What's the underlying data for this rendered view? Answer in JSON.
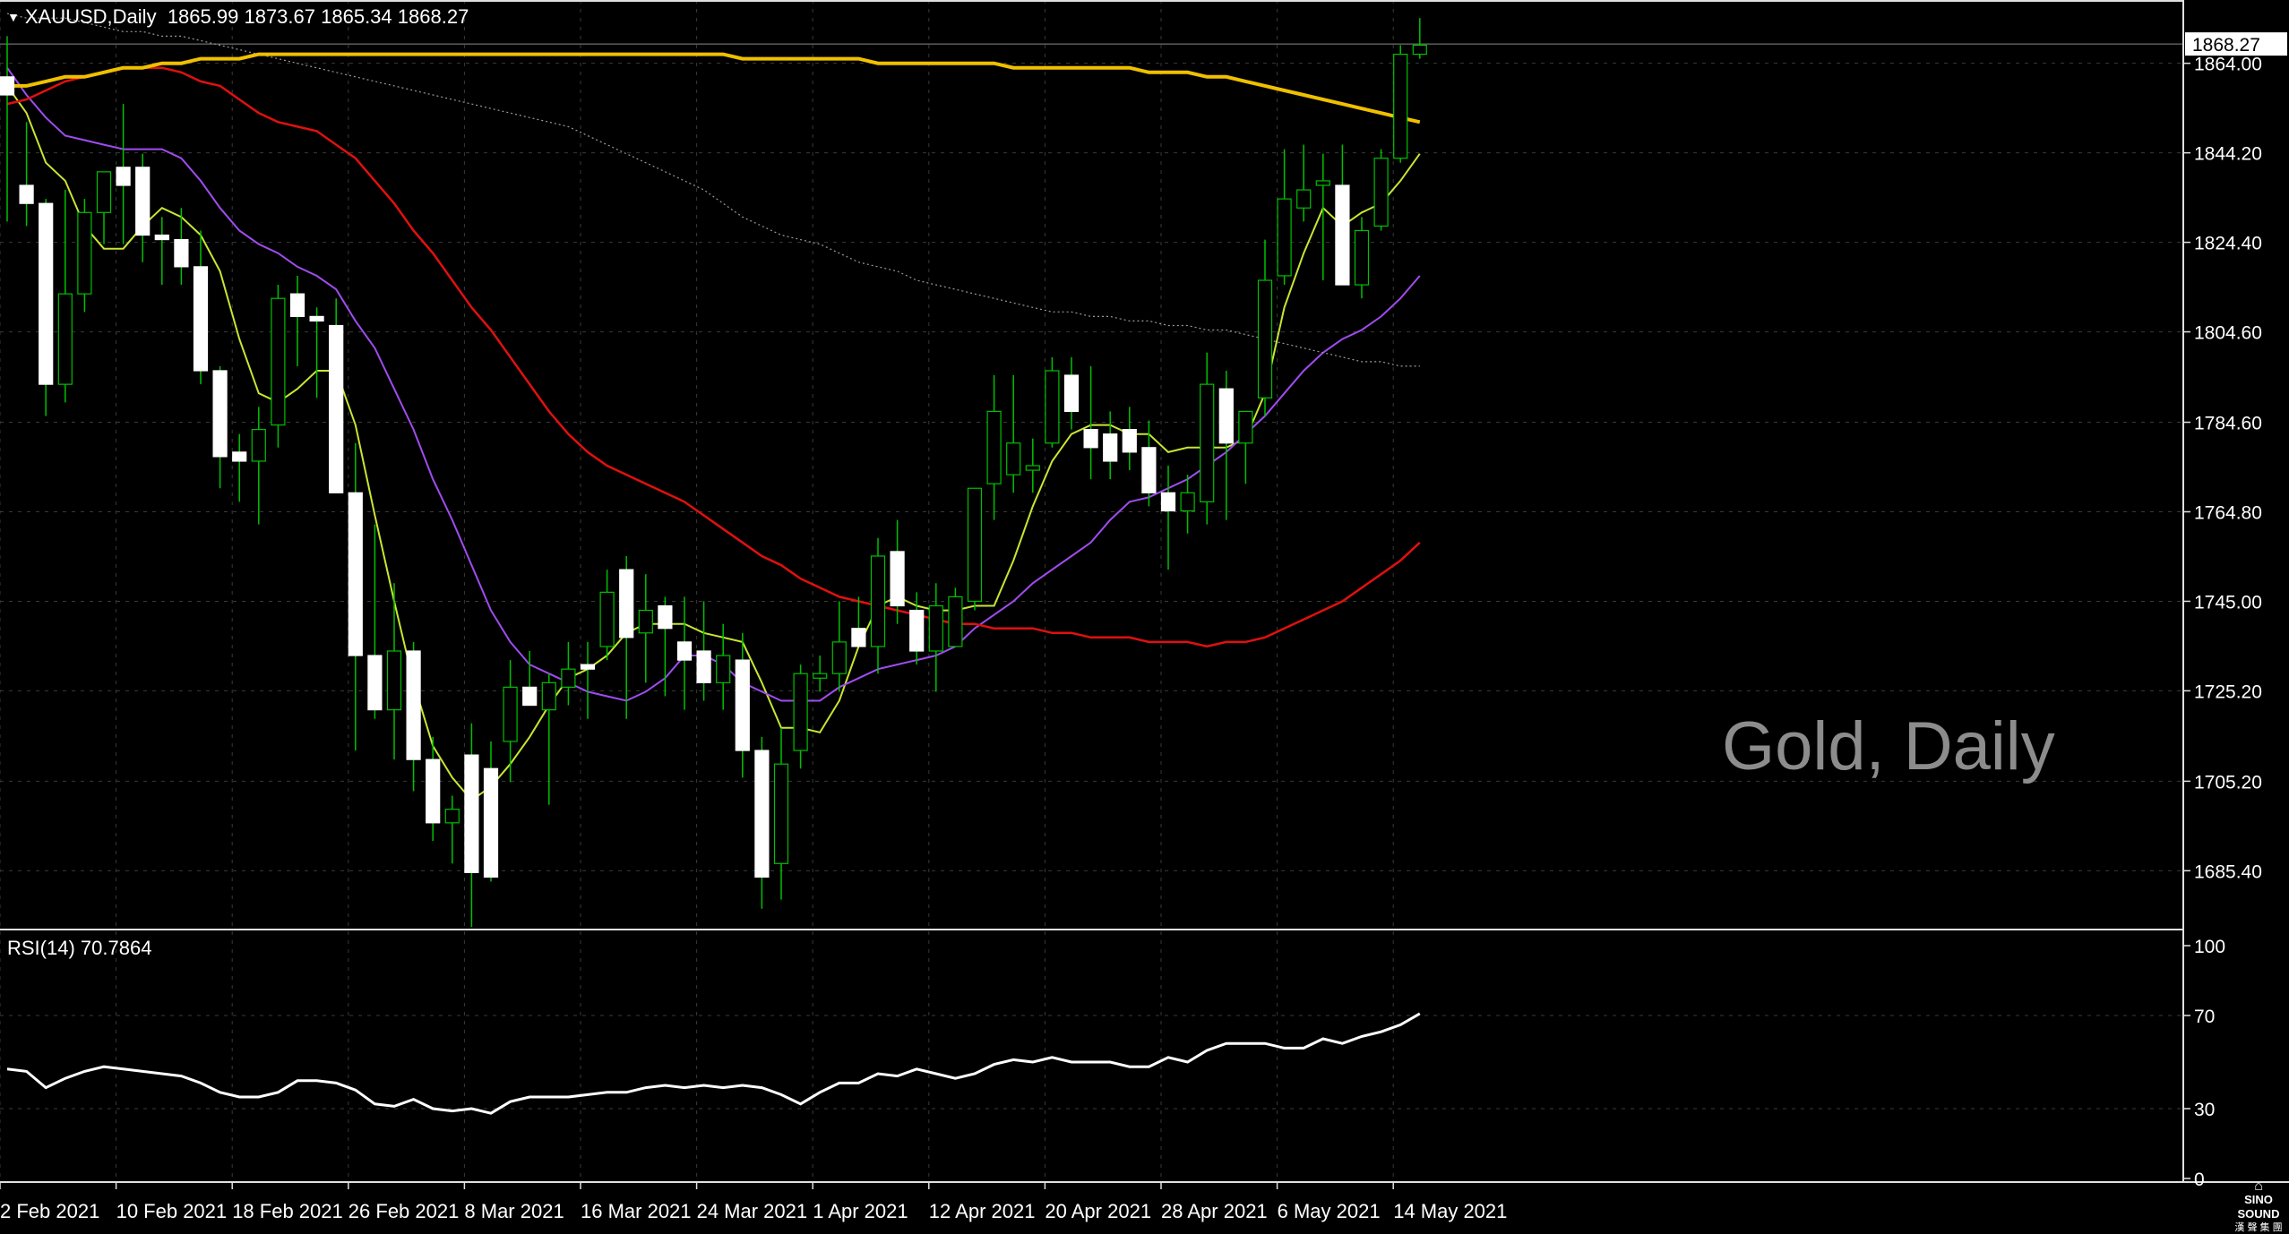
{
  "header": {
    "symbol": "XAUUSD",
    "timeframe": "Daily",
    "open": "1865.99",
    "high": "1873.67",
    "low": "1865.34",
    "close": "1868.27"
  },
  "watermark": "Gold, Daily",
  "brand": {
    "name": "SINO SOUND",
    "subtitle": "漢 聲 集 團"
  },
  "rsi": {
    "label": "RSI(14)",
    "value": "70.7864",
    "levels": [
      "100",
      "70",
      "30",
      "0"
    ]
  },
  "colors": {
    "background": "#000000",
    "grid": "#3a3a3a",
    "bull_candle": "#000000",
    "bear_candle": "#ffffff",
    "wick": "#00c000",
    "ma_fast": "#c8e632",
    "ma_20": "#a04cf0",
    "ma_50": "#e01010",
    "ma_100": "#9a9a9a",
    "ma_200": "#f0c000",
    "rsi_line": "#ffffff",
    "price_label_bg": "#ffffff"
  },
  "chart_data": {
    "type": "candlestick",
    "title": "XAUUSD,Daily",
    "ylim": [
      1672,
      1878
    ],
    "y_ticks": [
      "1864.00",
      "1844.20",
      "1824.40",
      "1804.60",
      "1784.60",
      "1764.80",
      "1745.00",
      "1725.20",
      "1705.20",
      "1685.40"
    ],
    "current_price": "1868.27",
    "x_tick_labels": [
      {
        "index": 0,
        "label": "2 Feb 2021"
      },
      {
        "index": 6,
        "label": "10 Feb 2021"
      },
      {
        "index": 12,
        "label": "18 Feb 2021"
      },
      {
        "index": 18,
        "label": "26 Feb 2021"
      },
      {
        "index": 24,
        "label": "8 Mar 2021"
      },
      {
        "index": 30,
        "label": "16 Mar 2021"
      },
      {
        "index": 36,
        "label": "24 Mar 2021"
      },
      {
        "index": 42,
        "label": "1 Apr 2021"
      },
      {
        "index": 48,
        "label": "12 Apr 2021"
      },
      {
        "index": 54,
        "label": "20 Apr 2021"
      },
      {
        "index": 60,
        "label": "28 Apr 2021"
      },
      {
        "index": 66,
        "label": "6 May 2021"
      },
      {
        "index": 72,
        "label": "14 May 2021"
      }
    ],
    "ohlc": [
      [
        1861,
        1870,
        1829,
        1857
      ],
      [
        1837,
        1851,
        1828,
        1833
      ],
      [
        1833,
        1834,
        1786,
        1793
      ],
      [
        1793,
        1836,
        1789,
        1813
      ],
      [
        1813,
        1834,
        1809,
        1831
      ],
      [
        1831,
        1840,
        1824,
        1840
      ],
      [
        1841,
        1855,
        1824,
        1837
      ],
      [
        1841,
        1844,
        1820,
        1826
      ],
      [
        1826,
        1830,
        1815,
        1825
      ],
      [
        1825,
        1832,
        1815,
        1819
      ],
      [
        1819,
        1827,
        1793,
        1796
      ],
      [
        1796,
        1797,
        1770,
        1777
      ],
      [
        1778,
        1782,
        1767,
        1776
      ],
      [
        1776,
        1788,
        1762,
        1783
      ],
      [
        1784,
        1815,
        1779,
        1812
      ],
      [
        1813,
        1817,
        1797,
        1808
      ],
      [
        1808,
        1810,
        1790,
        1807
      ],
      [
        1806,
        1812,
        1770,
        1769
      ],
      [
        1769,
        1780,
        1712,
        1733
      ],
      [
        1733,
        1762,
        1719,
        1721
      ],
      [
        1721,
        1749,
        1710,
        1734
      ],
      [
        1734,
        1736,
        1703,
        1710
      ],
      [
        1710,
        1715,
        1692,
        1696
      ],
      [
        1696,
        1702,
        1687,
        1699
      ],
      [
        1711,
        1718,
        1673,
        1685
      ],
      [
        1708,
        1714,
        1683,
        1684
      ],
      [
        1714,
        1732,
        1705,
        1726
      ],
      [
        1726,
        1734,
        1724,
        1722
      ],
      [
        1721,
        1729,
        1700,
        1727
      ],
      [
        1726,
        1736,
        1722,
        1730
      ],
      [
        1731,
        1736,
        1719,
        1730
      ],
      [
        1735,
        1752,
        1732,
        1747
      ],
      [
        1752,
        1755,
        1719,
        1737
      ],
      [
        1738,
        1751,
        1727,
        1743
      ],
      [
        1744,
        1746,
        1724,
        1739
      ],
      [
        1736,
        1746,
        1721,
        1732
      ],
      [
        1734,
        1745,
        1723,
        1727
      ],
      [
        1727,
        1740,
        1721,
        1733
      ],
      [
        1732,
        1738,
        1706,
        1712
      ],
      [
        1712,
        1715,
        1677,
        1684
      ],
      [
        1687,
        1717,
        1679,
        1709
      ],
      [
        1712,
        1731,
        1708,
        1729
      ],
      [
        1728,
        1733,
        1725,
        1729
      ],
      [
        1729,
        1745,
        1725,
        1736
      ],
      [
        1739,
        1746,
        1735,
        1735
      ],
      [
        1735,
        1759,
        1729,
        1755
      ],
      [
        1756,
        1763,
        1740,
        1744
      ],
      [
        1743,
        1747,
        1731,
        1734
      ],
      [
        1734,
        1749,
        1725,
        1744
      ],
      [
        1735,
        1748,
        1737,
        1746
      ],
      [
        1745,
        1770,
        1743,
        1770
      ],
      [
        1771,
        1795,
        1763,
        1787
      ],
      [
        1773,
        1795,
        1769,
        1780
      ],
      [
        1774,
        1781,
        1769,
        1775
      ],
      [
        1780,
        1799,
        1779,
        1796
      ],
      [
        1795,
        1799,
        1783,
        1787
      ],
      [
        1783,
        1797,
        1772,
        1779
      ],
      [
        1782,
        1787,
        1772,
        1776
      ],
      [
        1783,
        1788,
        1774,
        1778
      ],
      [
        1779,
        1785,
        1766,
        1769
      ],
      [
        1769,
        1775,
        1752,
        1765
      ],
      [
        1765,
        1773,
        1760,
        1769
      ],
      [
        1767,
        1800,
        1762,
        1793
      ],
      [
        1792,
        1796,
        1763,
        1780
      ],
      [
        1780,
        1785,
        1771,
        1787
      ],
      [
        1790,
        1825,
        1786,
        1816
      ],
      [
        1817,
        1845,
        1815,
        1834
      ],
      [
        1832,
        1846,
        1829,
        1836
      ],
      [
        1837,
        1844,
        1816,
        1838
      ],
      [
        1837,
        1846,
        1815,
        1815
      ],
      [
        1815,
        1830,
        1812,
        1827
      ],
      [
        1828,
        1845,
        1827,
        1843
      ],
      [
        1843,
        1868,
        1842,
        1866
      ],
      [
        1866,
        1874,
        1865,
        1868
      ]
    ],
    "series": [
      {
        "name": "ma_fast",
        "values": [
          1859,
          1853,
          1842,
          1838,
          1828,
          1823,
          1823,
          1828,
          1832,
          1830,
          1826,
          1818,
          1803,
          1791,
          1789,
          1792,
          1796,
          1796,
          1784,
          1764,
          1745,
          1727,
          1713,
          1706,
          1701,
          1704,
          1709,
          1715,
          1722,
          1728,
          1730,
          1733,
          1738,
          1740,
          1740,
          1740,
          1738,
          1737,
          1736,
          1727,
          1717,
          1717,
          1716,
          1723,
          1735,
          1744,
          1746,
          1744,
          1743,
          1743,
          1744,
          1744,
          1754,
          1766,
          1776,
          1782,
          1784,
          1784,
          1782,
          1782,
          1778,
          1779,
          1779,
          1779,
          1781,
          1791,
          1810,
          1822,
          1832,
          1828,
          1831,
          1833,
          1838,
          1844
        ]
      },
      {
        "name": "ma_20",
        "values": [
          1863,
          1857,
          1852,
          1848,
          1847,
          1846,
          1845,
          1845,
          1845,
          1843,
          1838,
          1832,
          1827,
          1824,
          1822,
          1819,
          1817,
          1814,
          1807,
          1801,
          1792,
          1783,
          1772,
          1763,
          1753,
          1743,
          1736,
          1731,
          1729,
          1727,
          1725,
          1724,
          1723,
          1725,
          1728,
          1733,
          1733,
          1731,
          1727,
          1725,
          1723,
          1723,
          1723,
          1726,
          1728,
          1730,
          1731,
          1732,
          1733,
          1735,
          1739,
          1742,
          1745,
          1749,
          1752,
          1755,
          1758,
          1763,
          1767,
          1768,
          1770,
          1772,
          1775,
          1778,
          1782,
          1786,
          1791,
          1796,
          1800,
          1803,
          1805,
          1808,
          1812,
          1817
        ]
      },
      {
        "name": "ma_50",
        "values": [
          1855,
          1856,
          1858,
          1860,
          1861,
          1862,
          1863,
          1863,
          1863,
          1862,
          1860,
          1859,
          1856,
          1853,
          1851,
          1850,
          1849,
          1846,
          1843,
          1838,
          1833,
          1827,
          1822,
          1816,
          1810,
          1805,
          1799,
          1793,
          1787,
          1782,
          1778,
          1775,
          1773,
          1771,
          1769,
          1767,
          1764,
          1761,
          1758,
          1755,
          1753,
          1750,
          1748,
          1746,
          1745,
          1744,
          1743,
          1742,
          1741,
          1740,
          1740,
          1739,
          1739,
          1739,
          1738,
          1738,
          1737,
          1737,
          1737,
          1736,
          1736,
          1736,
          1735,
          1736,
          1736,
          1737,
          1739,
          1741,
          1743,
          1745,
          1748,
          1751,
          1754,
          1758
        ]
      },
      {
        "name": "ma_100",
        "values": [
          1875,
          1874,
          1874,
          1874,
          1873,
          1872,
          1871,
          1871,
          1870,
          1870,
          1869,
          1868,
          1867,
          1866,
          1865,
          1864,
          1863,
          1862,
          1861,
          1860,
          1859,
          1858,
          1857,
          1856,
          1855,
          1854,
          1853,
          1852,
          1851,
          1850,
          1848,
          1846,
          1844,
          1842,
          1840,
          1838,
          1836,
          1833,
          1830,
          1828,
          1826,
          1825,
          1824,
          1822,
          1820,
          1819,
          1818,
          1816,
          1815,
          1814,
          1813,
          1812,
          1811,
          1810,
          1809,
          1809,
          1808,
          1808,
          1807,
          1807,
          1806,
          1806,
          1805,
          1805,
          1804,
          1803,
          1802,
          1801,
          1800,
          1799,
          1798,
          1798,
          1797,
          1797
        ]
      },
      {
        "name": "ma_200",
        "values": [
          1859,
          1859,
          1860,
          1861,
          1861,
          1862,
          1863,
          1863,
          1864,
          1864,
          1865,
          1865,
          1865,
          1866,
          1866,
          1866,
          1866,
          1866,
          1866,
          1866,
          1866,
          1866,
          1866,
          1866,
          1866,
          1866,
          1866,
          1866,
          1866,
          1866,
          1866,
          1866,
          1866,
          1866,
          1866,
          1866,
          1866,
          1866,
          1865,
          1865,
          1865,
          1865,
          1865,
          1865,
          1865,
          1864,
          1864,
          1864,
          1864,
          1864,
          1864,
          1864,
          1863,
          1863,
          1863,
          1863,
          1863,
          1863,
          1863,
          1862,
          1862,
          1862,
          1861,
          1861,
          1860,
          1859,
          1858,
          1857,
          1856,
          1855,
          1854,
          1853,
          1852,
          1851
        ]
      },
      {
        "name": "RSI(14)",
        "values": [
          47,
          46,
          39,
          43,
          46,
          48,
          47,
          46,
          45,
          44,
          41,
          37,
          35,
          35,
          37,
          42,
          42,
          41,
          38,
          32,
          31,
          34,
          30,
          29,
          30,
          28,
          33,
          35,
          35,
          35,
          36,
          37,
          37,
          39,
          40,
          39,
          40,
          39,
          40,
          39,
          36,
          32,
          37,
          41,
          41,
          45,
          44,
          47,
          45,
          43,
          45,
          49,
          51,
          50,
          52,
          50,
          50,
          50,
          48,
          48,
          52,
          50,
          55,
          58,
          58,
          58,
          56,
          56,
          60,
          58,
          61,
          63,
          66,
          70.8
        ]
      }
    ]
  }
}
